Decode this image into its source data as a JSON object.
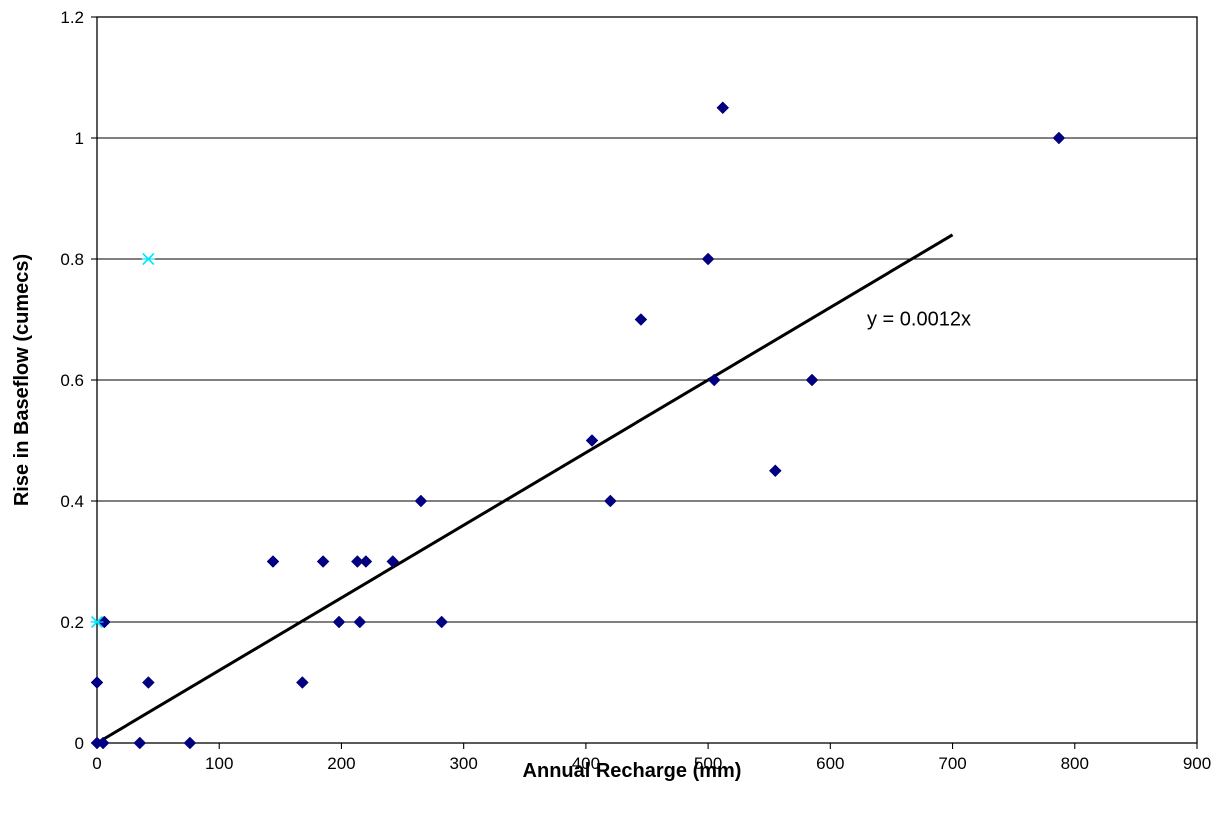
{
  "chart_data": {
    "type": "scatter",
    "xlabel": "Annual Recharge (mm)",
    "ylabel": "Rise in Baseflow (cumecs)",
    "xlim": [
      0,
      900
    ],
    "ylim": [
      0,
      1.2
    ],
    "x_ticks": [
      "0",
      "100",
      "200",
      "300",
      "400",
      "500",
      "600",
      "700",
      "800",
      "900"
    ],
    "y_ticks": [
      "0",
      "0.2",
      "0.4",
      "0.6",
      "0.8",
      "1",
      "1.2"
    ],
    "grid": "horizontal",
    "colors": {
      "series_main": "#000080",
      "series_alt": "#00e5ff",
      "trendline": "#000000",
      "gridline": "#000000"
    },
    "series": [
      {
        "marker": "diamond",
        "color": "#000080",
        "points": [
          [
            0,
            0
          ],
          [
            5,
            0
          ],
          [
            35,
            0
          ],
          [
            76,
            0
          ],
          [
            0,
            0.1
          ],
          [
            42,
            0.1
          ],
          [
            168,
            0.1
          ],
          [
            6,
            0.2
          ],
          [
            198,
            0.2
          ],
          [
            215,
            0.2
          ],
          [
            282,
            0.2
          ],
          [
            144,
            0.3
          ],
          [
            185,
            0.3
          ],
          [
            213,
            0.3
          ],
          [
            220,
            0.3
          ],
          [
            242,
            0.3
          ],
          [
            265,
            0.4
          ],
          [
            420,
            0.4
          ],
          [
            405,
            0.5
          ],
          [
            555,
            0.45
          ],
          [
            505,
            0.6
          ],
          [
            585,
            0.6
          ],
          [
            445,
            0.7
          ],
          [
            500,
            0.8
          ],
          [
            512,
            1.05
          ],
          [
            787,
            1.0
          ]
        ]
      },
      {
        "marker": "x",
        "color": "#00e5ff",
        "points": [
          [
            42,
            0.8
          ],
          [
            0,
            0.2
          ]
        ]
      }
    ],
    "trendline": {
      "slope": 0.0012,
      "x_range": [
        0,
        700
      ],
      "label": "y = 0.0012x",
      "label_anchor": [
        630,
        0.69
      ]
    }
  }
}
